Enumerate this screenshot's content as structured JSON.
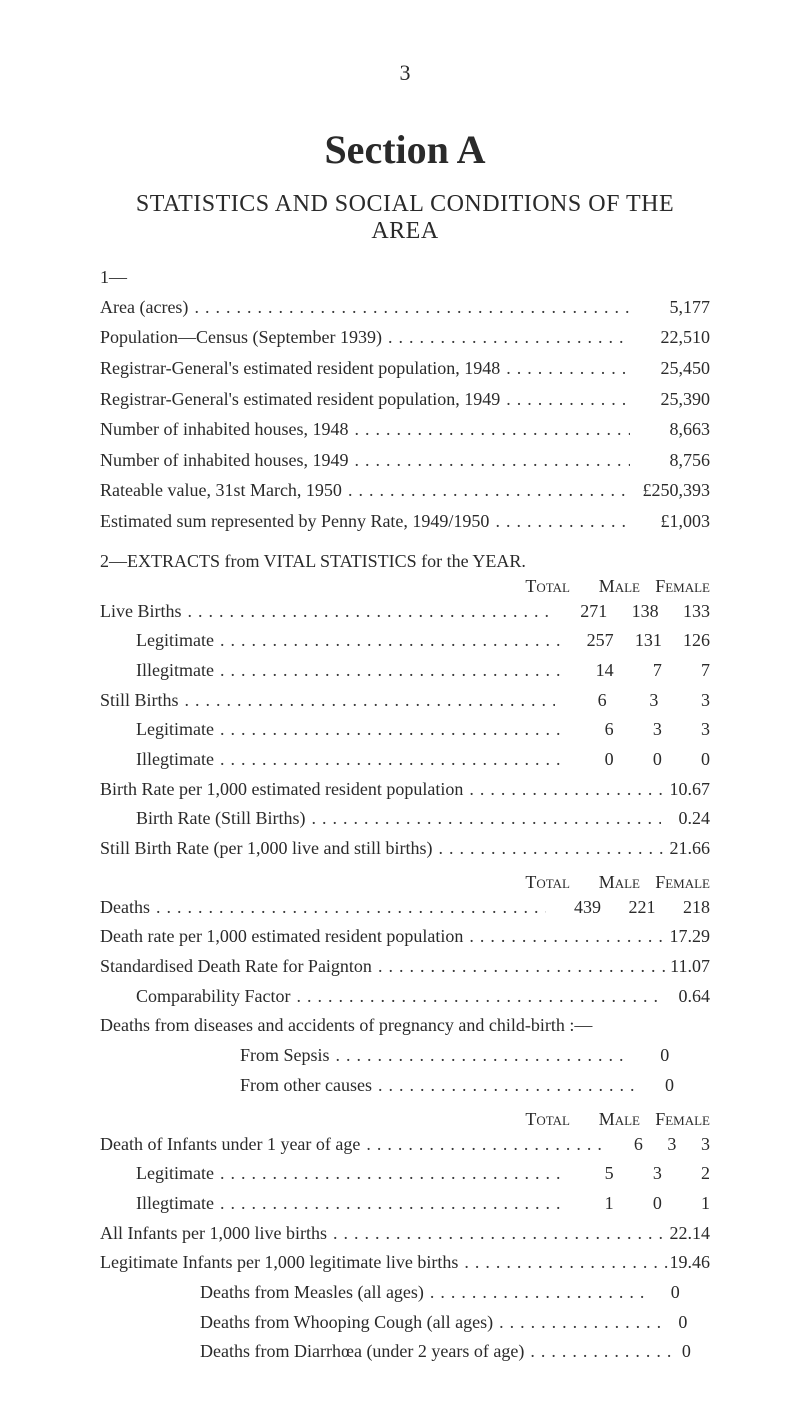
{
  "page_number": "3",
  "section_label": "Section A",
  "main_heading": "STATISTICS AND SOCIAL CONDITIONS OF THE AREA",
  "block1": {
    "prefix": "1—",
    "rows": [
      {
        "label": "Area (acres)",
        "value": "5,177"
      },
      {
        "label": "Population—Census (September 1939)",
        "value": "22,510"
      },
      {
        "label": "Registrar-General's estimated resident population, 1948",
        "value": "25,450"
      },
      {
        "label": "Registrar-General's estimated resident population, 1949",
        "value": "25,390"
      },
      {
        "label": "Number of inhabited houses, 1948",
        "value": "8,663"
      },
      {
        "label": "Number of inhabited houses, 1949",
        "value": "8,756"
      },
      {
        "label": "Rateable value, 31st March, 1950",
        "value": "£250,393"
      },
      {
        "label": "Estimated sum represented by Penny Rate, 1949/1950",
        "value": "£1,003"
      }
    ]
  },
  "block2": {
    "heading": "2—EXTRACTS from VITAL STATISTICS for the YEAR.",
    "col_heads": {
      "total": "Total",
      "male": "Male",
      "female": "Female"
    },
    "rows3": [
      {
        "label": "Live Births",
        "indent": false,
        "total": "271",
        "male": "138",
        "female": "133"
      },
      {
        "label": "Legitimate",
        "indent": true,
        "total": "257",
        "male": "131",
        "female": "126"
      },
      {
        "label": "Illegitmate",
        "indent": true,
        "total": "14",
        "male": "7",
        "female": "7"
      },
      {
        "label": "Still Births",
        "indent": false,
        "total": "6",
        "male": "3",
        "female": "3"
      },
      {
        "label": "Legitimate",
        "indent": true,
        "total": "6",
        "male": "3",
        "female": "3"
      },
      {
        "label": "Illegtimate",
        "indent": true,
        "total": "0",
        "male": "0",
        "female": "0"
      }
    ],
    "rows1_a": [
      {
        "label": "Birth Rate per 1,000 estimated resident population",
        "value": "10.67"
      },
      {
        "label": "Birth Rate (Still Births)",
        "indent": true,
        "value": "0.24"
      },
      {
        "label": "Still Birth Rate (per 1,000 live and still births)",
        "value": "21.66"
      }
    ],
    "deaths_row": {
      "label": "Deaths",
      "total": "439",
      "male": "221",
      "female": "218"
    },
    "rows1_b": [
      {
        "label": "Death rate per 1,000 estimated resident population",
        "value": "17.29"
      },
      {
        "label": "Standardised Death Rate for Paignton",
        "value": "11.07"
      },
      {
        "label": "Comparability Factor",
        "indent": true,
        "value": "0.64"
      }
    ],
    "preg_line": "Deaths from diseases and accidents of pregnancy and child-birth :—",
    "preg_rows": [
      {
        "label": "From Sepsis",
        "value": "0"
      },
      {
        "label": "From other causes",
        "value": "0"
      }
    ],
    "infants_row": {
      "label": "Death of Infants under 1 year of age",
      "total": "6",
      "male": "3",
      "female": "3"
    },
    "infants_sub": [
      {
        "label": "Legitimate",
        "total": "5",
        "male": "3",
        "female": "2"
      },
      {
        "label": "Illegtimate",
        "total": "1",
        "male": "0",
        "female": "1"
      }
    ],
    "rows1_c": [
      {
        "label": "All Infants per 1,000 live births",
        "value": "22.14"
      },
      {
        "label": "Legitimate Infants per 1,000 legitimate live births",
        "value": "19.46"
      }
    ],
    "last_rows": [
      {
        "label": "Deaths from Measles (all ages)",
        "value": "0"
      },
      {
        "label": "Deaths from Whooping Cough (all ages)",
        "value": "0"
      },
      {
        "label": "Deaths from Diarrhœa (under 2 years of age)",
        "value": "0"
      }
    ]
  },
  "dots": "..............................................."
}
